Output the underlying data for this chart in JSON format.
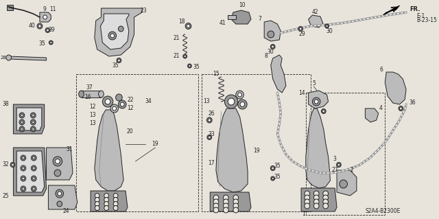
{
  "fig_width": 6.4,
  "fig_height": 3.19,
  "dpi": 100,
  "background_color": "#e8e4dc",
  "line_color": "#222222",
  "diagram_code": "S2A4-B2300E",
  "fr_label": "FR.",
  "ref_label": "E-1\nB-23-15"
}
